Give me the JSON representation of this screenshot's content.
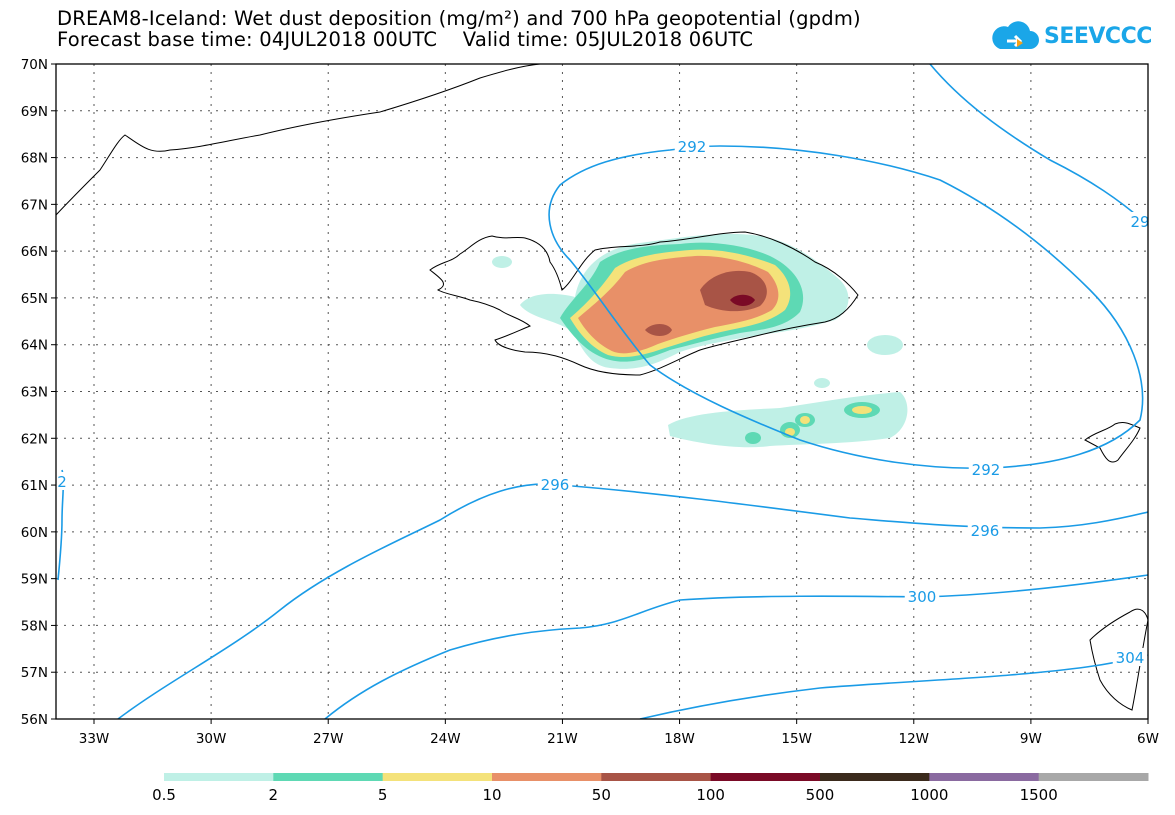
{
  "header": {
    "title_line1": "DREAM8-Iceland: Wet dust deposition (mg/m²) and 700 hPa geopotential (gpdm)",
    "title_line2": "Forecast base time: 04JUL2018 00UTC    Valid time: 05JUL2018 06UTC"
  },
  "logo": {
    "text": "SEEVCCC"
  },
  "map": {
    "lat_labels": [
      "70N",
      "69N",
      "68N",
      "67N",
      "66N",
      "65N",
      "64N",
      "63N",
      "62N",
      "61N",
      "60N",
      "59N",
      "58N",
      "57N",
      "56N"
    ],
    "lon_labels": [
      "33W",
      "30W",
      "27W",
      "24W",
      "21W",
      "18W",
      "15W",
      "12W",
      "9W",
      "6W"
    ],
    "contour_labels": [
      "292",
      "29",
      "292",
      "296",
      "296",
      "300",
      "304",
      "2"
    ],
    "colors": {
      "contour": "#1a9be6",
      "coast": "#000000"
    }
  },
  "legend": {
    "labels": [
      "0.5",
      "2",
      "5",
      "10",
      "50",
      "100",
      "500",
      "1000",
      "1500"
    ],
    "colors": [
      "#bff0e6",
      "#5ed9b4",
      "#f4e27a",
      "#e89068",
      "#a85446",
      "#7a0a26",
      "#3b2a1c",
      "#8a6aa0",
      "#a8a8a8"
    ]
  }
}
